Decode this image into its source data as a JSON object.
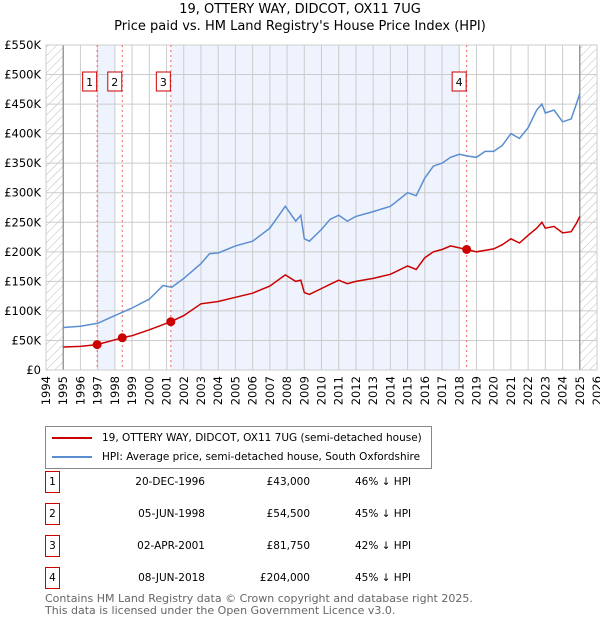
{
  "chart_data": {
    "type": "line",
    "title": "19, OTTERY WAY, DIDCOT, OX11 7UG",
    "subtitle": "Price paid vs. HM Land Registry's House Price Index (HPI)",
    "xlim": [
      1994,
      2026
    ],
    "ylim": [
      0,
      550000
    ],
    "x_ticks": [
      "1994",
      "1995",
      "1996",
      "1997",
      "1998",
      "1999",
      "2000",
      "2001",
      "2002",
      "2003",
      "2004",
      "2005",
      "2006",
      "2007",
      "2008",
      "2009",
      "2010",
      "2011",
      "2012",
      "2013",
      "2014",
      "2015",
      "2016",
      "2017",
      "2018",
      "2019",
      "2020",
      "2021",
      "2022",
      "2023",
      "2024",
      "2025",
      "2026"
    ],
    "y_ticks": [
      {
        "v": 0,
        "label": "£0"
      },
      {
        "v": 50000,
        "label": "£50K"
      },
      {
        "v": 100000,
        "label": "£100K"
      },
      {
        "v": 150000,
        "label": "£150K"
      },
      {
        "v": 200000,
        "label": "£200K"
      },
      {
        "v": 250000,
        "label": "£250K"
      },
      {
        "v": 300000,
        "label": "£300K"
      },
      {
        "v": 350000,
        "label": "£350K"
      },
      {
        "v": 400000,
        "label": "£400K"
      },
      {
        "v": 450000,
        "label": "£450K"
      },
      {
        "v": 500000,
        "label": "£500K"
      },
      {
        "v": 550000,
        "label": "£550K"
      }
    ],
    "grid": true,
    "legend_position": "below",
    "series": [
      {
        "name": "19, OTTERY WAY, DIDCOT, OX11 7UG (semi-detached house)",
        "color": "#cc0000",
        "x": [
          1995,
          1996,
          1996.97,
          1998.43,
          1999,
          2000,
          2001.25,
          2002,
          2003,
          2004,
          2005,
          2006,
          2007,
          2007.9,
          2008.5,
          2008.8,
          2009,
          2009.3,
          2010,
          2010.5,
          2011,
          2011.5,
          2012,
          2013,
          2014,
          2015,
          2015.5,
          2016,
          2016.5,
          2017,
          2017.5,
          2018.43,
          2019,
          2020,
          2020.5,
          2021,
          2021.5,
          2022,
          2022.5,
          2022.8,
          2023,
          2023.5,
          2024,
          2024.5,
          2024.8,
          2025
        ],
        "y": [
          39000,
          40000,
          43000,
          54500,
          58000,
          68000,
          81750,
          92000,
          112000,
          116000,
          123000,
          130000,
          142000,
          161000,
          150000,
          152000,
          131000,
          128000,
          138000,
          145000,
          152000,
          146000,
          150000,
          155000,
          162000,
          176000,
          170000,
          190000,
          200000,
          204000,
          210000,
          204000,
          200000,
          205000,
          212000,
          222000,
          215000,
          228000,
          240000,
          250000,
          240000,
          243000,
          232000,
          234000,
          248000,
          260000
        ]
      },
      {
        "name": "HPI: Average price, semi-detached house, South Oxfordshire",
        "color": "#5b8ed1",
        "x": [
          1995,
          1996,
          1997,
          1998,
          1999,
          2000,
          2000.8,
          2001.3,
          2002,
          2003,
          2003.5,
          2004,
          2005,
          2006,
          2007,
          2007.9,
          2008.5,
          2008.8,
          2009,
          2009.3,
          2010,
          2010.5,
          2011,
          2011.5,
          2012,
          2013,
          2014,
          2015,
          2015.5,
          2016,
          2016.5,
          2017,
          2017.5,
          2018,
          2018.5,
          2019,
          2019.5,
          2020,
          2020.5,
          2021,
          2021.5,
          2022,
          2022.5,
          2022.8,
          2023,
          2023.5,
          2024,
          2024.5,
          2024.8,
          2025
        ],
        "y": [
          72000,
          74000,
          79000,
          92000,
          105000,
          120000,
          143000,
          140000,
          155000,
          180000,
          197000,
          198000,
          210000,
          218000,
          240000,
          277000,
          252000,
          262000,
          222000,
          218000,
          238000,
          255000,
          262000,
          252000,
          260000,
          268000,
          277000,
          300000,
          295000,
          325000,
          345000,
          350000,
          360000,
          365000,
          362000,
          360000,
          370000,
          370000,
          380000,
          400000,
          392000,
          410000,
          440000,
          450000,
          435000,
          440000,
          420000,
          425000,
          450000,
          468000
        ]
      }
    ],
    "sales": [
      {
        "n": "1",
        "x": 1996.97,
        "y": 43000
      },
      {
        "n": "2",
        "x": 1998.43,
        "y": 54500
      },
      {
        "n": "3",
        "x": 2001.25,
        "y": 81750
      },
      {
        "n": "4",
        "x": 2018.43,
        "y": 204000
      }
    ],
    "shaded_ranges": [
      [
        1996.97,
        1998.0
      ],
      [
        2001.25,
        2018.0
      ]
    ],
    "hatched_ranges": [
      [
        1994,
        1995
      ],
      [
        2025,
        2026
      ]
    ]
  },
  "legend": [
    {
      "label": "19, OTTERY WAY, DIDCOT, OX11 7UG (semi-detached house)",
      "color": "#cc0000"
    },
    {
      "label": "HPI: Average price, semi-detached house, South Oxfordshire",
      "color": "#5b8ed1"
    }
  ],
  "table": [
    {
      "n": "1",
      "date": "20-DEC-1996",
      "price": "£43,000",
      "hpi": "46% ↓ HPI"
    },
    {
      "n": "2",
      "date": "05-JUN-1998",
      "price": "£54,500",
      "hpi": "45% ↓ HPI"
    },
    {
      "n": "3",
      "date": "02-APR-2001",
      "price": "£81,750",
      "hpi": "42% ↓ HPI"
    },
    {
      "n": "4",
      "date": "08-JUN-2018",
      "price": "£204,000",
      "hpi": "45% ↓ HPI"
    }
  ],
  "footer": {
    "line1": "Contains HM Land Registry data © Crown copyright and database right 2025.",
    "line2": "This data is licensed under the Open Government Licence v3.0."
  }
}
